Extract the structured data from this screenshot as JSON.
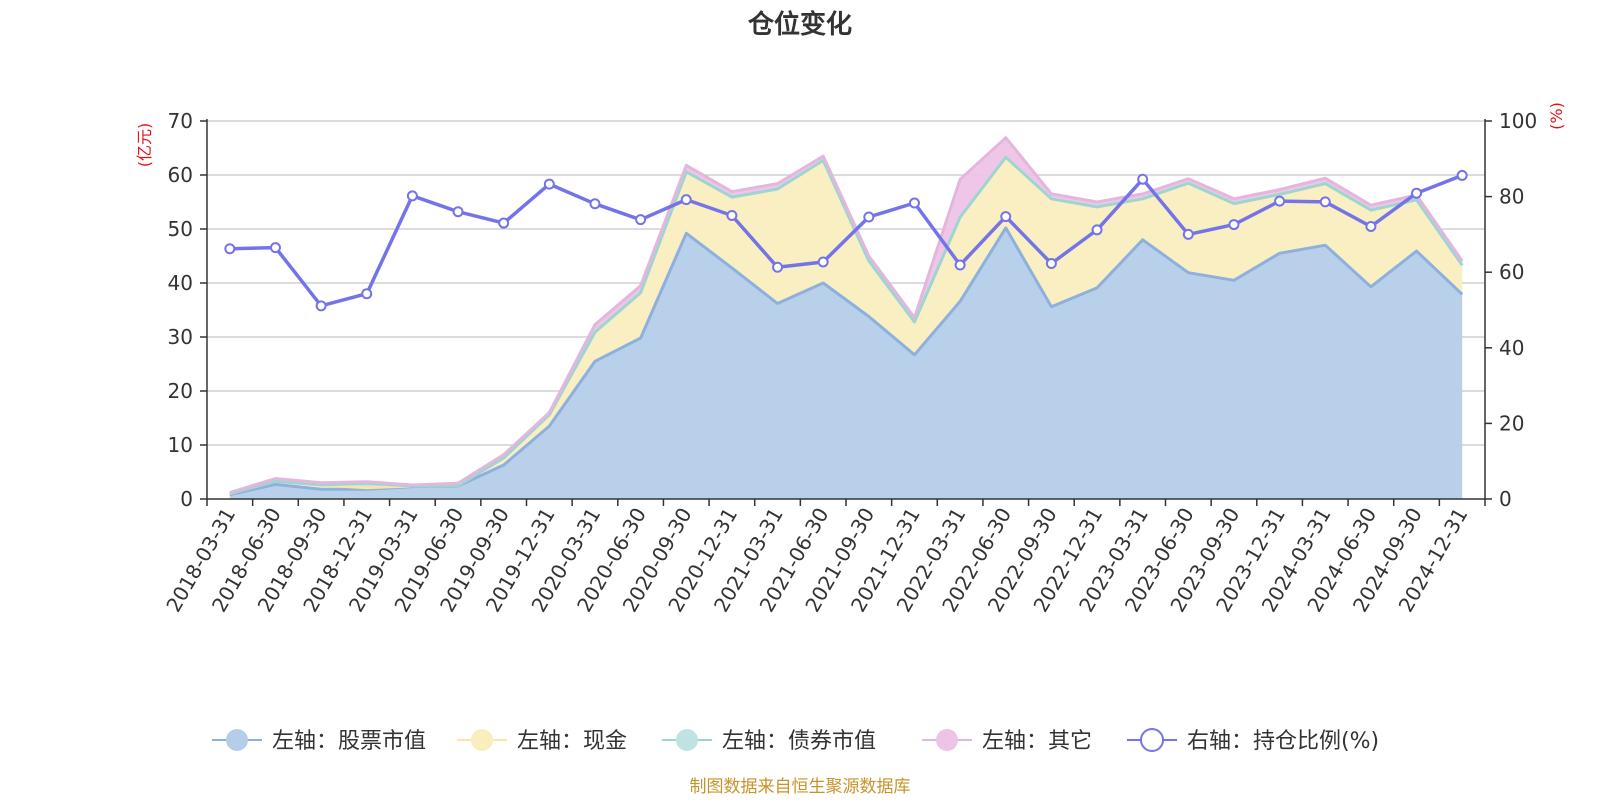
{
  "chart_data": {
    "type": "area",
    "title": "仓位变化",
    "categories": [
      "2018-03-31",
      "2018-06-30",
      "2018-09-30",
      "2018-12-31",
      "2019-03-31",
      "2019-06-30",
      "2019-09-30",
      "2019-12-31",
      "2020-03-31",
      "2020-06-30",
      "2020-09-30",
      "2020-12-31",
      "2021-03-31",
      "2021-06-30",
      "2021-09-30",
      "2021-12-31",
      "2022-03-31",
      "2022-06-30",
      "2022-09-30",
      "2022-12-31",
      "2023-03-31",
      "2023-06-30",
      "2023-09-30",
      "2023-12-31",
      "2024-03-31",
      "2024-06-30",
      "2024-09-30",
      "2024-12-31"
    ],
    "left_axis": {
      "unit_label": "(亿元)",
      "ylim": [
        0,
        70
      ],
      "ticks": [
        0,
        10,
        20,
        30,
        40,
        50,
        60,
        70
      ]
    },
    "right_axis": {
      "unit_label": "(%)",
      "ylim": [
        0,
        100
      ],
      "ticks": [
        0,
        20,
        40,
        60,
        80,
        100
      ]
    },
    "stacked_series": [
      {
        "name": "左轴：股票市值",
        "color": "#8eb0dd",
        "fill": "#b5cdea",
        "values": [
          0.8,
          2.7,
          1.8,
          1.8,
          2.3,
          2.4,
          6.3,
          13.5,
          25.5,
          29.8,
          49.2,
          42.8,
          36.2,
          40.0,
          33.8,
          26.7,
          36.6,
          50.2,
          35.6,
          39.1,
          48.0,
          41.9,
          40.5,
          45.5,
          47.0,
          39.3,
          45.9,
          37.9
        ]
      },
      {
        "name": "左轴：现金",
        "color": "#f7e6a6",
        "fill": "#faeebf",
        "values": [
          0.2,
          0.6,
          0.8,
          0.3,
          0.1,
          0.1,
          1.3,
          2.1,
          5.4,
          8.4,
          11.4,
          13.1,
          21.2,
          22.7,
          10.3,
          6.1,
          15.6,
          13.1,
          20.0,
          15.0,
          7.6,
          16.6,
          14.2,
          10.9,
          11.4,
          14.2,
          9.5,
          5.4
        ]
      },
      {
        "name": "左轴：债券市值",
        "color": "#9dd5d4",
        "fill": "#bfe3e2",
        "values": [
          0,
          0,
          0,
          0.8,
          0,
          0,
          0,
          0,
          0,
          0,
          0,
          0,
          0,
          0,
          0,
          0,
          0,
          0,
          0,
          0,
          0,
          0,
          0,
          0,
          0,
          0,
          0,
          0
        ]
      },
      {
        "name": "左轴：其它",
        "color": "#e3b7dc",
        "fill": "#eec3e6",
        "values": [
          0.2,
          0.5,
          0.4,
          0.3,
          0.2,
          0.4,
          0.6,
          0.4,
          1.4,
          1.3,
          1.2,
          1.0,
          1.0,
          0.8,
          0.9,
          0.8,
          7.0,
          3.6,
          0.9,
          0.9,
          0.9,
          0.8,
          0.9,
          0.9,
          1.0,
          0.9,
          0.9,
          0.8
        ]
      }
    ],
    "line_series": {
      "name": "右轴：持仓比例(%)",
      "color": "#7474e8",
      "values": [
        66.2,
        66.5,
        51.1,
        54.3,
        80.2,
        76.0,
        73.0,
        83.3,
        78.1,
        73.9,
        79.2,
        75.0,
        61.3,
        62.7,
        74.6,
        78.3,
        61.9,
        74.7,
        62.3,
        71.2,
        84.6,
        70.0,
        72.6,
        78.8,
        78.6,
        72.1,
        80.9,
        85.6
      ]
    },
    "grid": true,
    "legend_position": "bottom"
  },
  "footer": "制图数据来自恒生聚源数据库"
}
